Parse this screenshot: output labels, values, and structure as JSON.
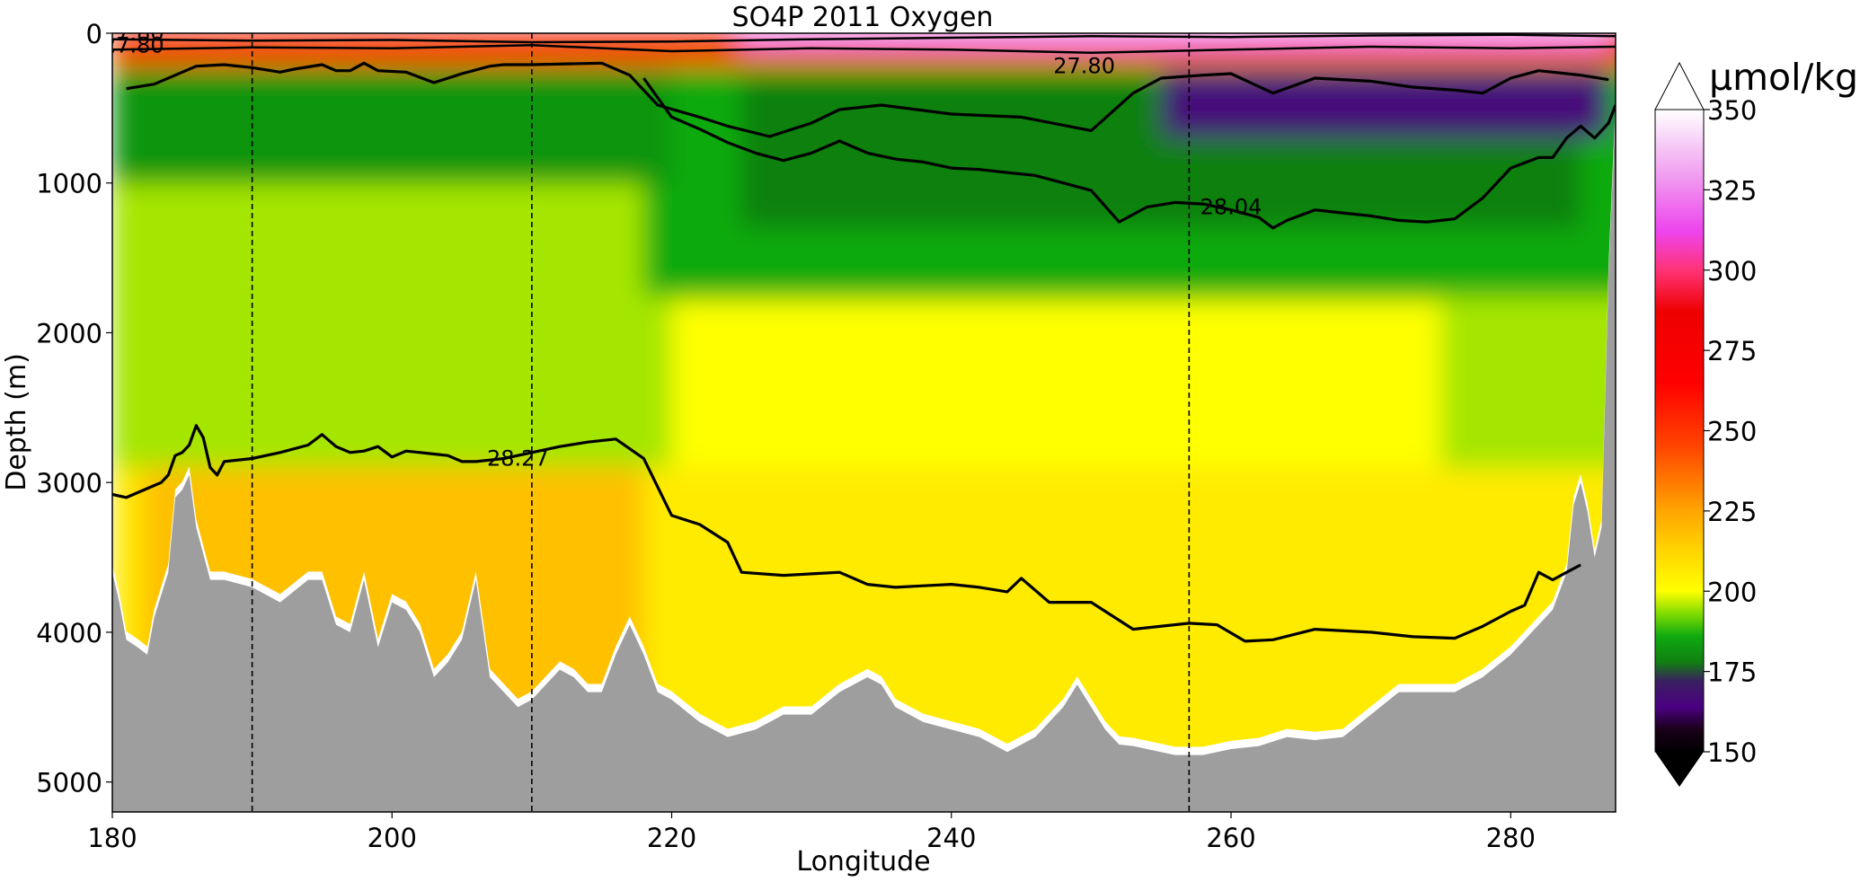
{
  "chart_data": {
    "type": "heatmap",
    "title": "SO4P 2011 Oxygen",
    "xlabel": "Longitude",
    "ylabel": "Depth (m)",
    "xlim": [
      180,
      287.5
    ],
    "ylim": [
      5200,
      0
    ],
    "x_ticks": [
      180,
      200,
      220,
      240,
      260,
      280
    ],
    "y_ticks": [
      0,
      1000,
      2000,
      3000,
      4000,
      5000
    ],
    "colorbar": {
      "unit": "µmol/kg",
      "range": [
        150,
        350
      ],
      "ticks": [
        150,
        175,
        200,
        225,
        250,
        275,
        300,
        325,
        350
      ],
      "extend": "both",
      "stops": [
        {
          "value": 150,
          "color": "#000000"
        },
        {
          "value": 157,
          "color": "#1a001a"
        },
        {
          "value": 164,
          "color": "#4b0082"
        },
        {
          "value": 172,
          "color": "#3a2060"
        },
        {
          "value": 178,
          "color": "#108010"
        },
        {
          "value": 186,
          "color": "#10aa10"
        },
        {
          "value": 193,
          "color": "#7fdc00"
        },
        {
          "value": 200,
          "color": "#ffff00"
        },
        {
          "value": 212,
          "color": "#ffd700"
        },
        {
          "value": 225,
          "color": "#ffa500"
        },
        {
          "value": 245,
          "color": "#ff4500"
        },
        {
          "value": 265,
          "color": "#ff0000"
        },
        {
          "value": 287,
          "color": "#ee0000"
        },
        {
          "value": 300,
          "color": "#ff3377"
        },
        {
          "value": 312,
          "color": "#ee44ee"
        },
        {
          "value": 330,
          "color": "#f0a0f0"
        },
        {
          "value": 350,
          "color": "#ffffff"
        }
      ]
    },
    "section_lines_lon": [
      190,
      210,
      257
    ],
    "bathymetry": {
      "lon": [
        180,
        180.5,
        181,
        181.8,
        182.5,
        183,
        184,
        184.5,
        185,
        185.5,
        186,
        187,
        188,
        190,
        192,
        194,
        195,
        196,
        197,
        198,
        199,
        200,
        201,
        202,
        203,
        204,
        205,
        206,
        207,
        208,
        209,
        210,
        211,
        212,
        213,
        214,
        215,
        216,
        217,
        218,
        219,
        220,
        222,
        224,
        226,
        228,
        230,
        232,
        234,
        235,
        236,
        238,
        240,
        242,
        244,
        245,
        246,
        248,
        249,
        250,
        251,
        252,
        253,
        254,
        256,
        258,
        260,
        262,
        264,
        266,
        268,
        270,
        272,
        274,
        276,
        278,
        280,
        281,
        282,
        282.5,
        283,
        284,
        284.5,
        285,
        285.5,
        286,
        286.5,
        287,
        287.5
      ],
      "depth": [
        3600,
        3800,
        4050,
        4100,
        4150,
        3900,
        3600,
        3100,
        3050,
        2950,
        3300,
        3650,
        3650,
        3700,
        3800,
        3650,
        3650,
        3950,
        4000,
        3650,
        4100,
        3800,
        3850,
        4000,
        4300,
        4200,
        4050,
        3650,
        4300,
        4400,
        4500,
        4450,
        4350,
        4250,
        4300,
        4400,
        4400,
        4150,
        3950,
        4150,
        4400,
        4450,
        4600,
        4700,
        4650,
        4550,
        4550,
        4400,
        4300,
        4350,
        4500,
        4600,
        4650,
        4700,
        4800,
        4750,
        4700,
        4500,
        4350,
        4500,
        4650,
        4750,
        4760,
        4780,
        4820,
        4820,
        4780,
        4760,
        4700,
        4720,
        4700,
        4550,
        4400,
        4400,
        4400,
        4300,
        4150,
        4050,
        3950,
        3900,
        3850,
        3600,
        3150,
        3000,
        3200,
        3500,
        3300,
        1600,
        500
      ]
    },
    "isopycnals": [
      {
        "label": "27.80",
        "lon": [
          181,
          183,
          186,
          188,
          190,
          192,
          193,
          195,
          196,
          197,
          198,
          199,
          201,
          203,
          205,
          207,
          208,
          210,
          215,
          217,
          219,
          222,
          224,
          227,
          230,
          232,
          235,
          240,
          245,
          250,
          253,
          255,
          258,
          260,
          263,
          266,
          270,
          273,
          276,
          278,
          280,
          282,
          284,
          285,
          287
        ],
        "depth": [
          370,
          340,
          220,
          210,
          230,
          260,
          240,
          210,
          250,
          250,
          200,
          250,
          260,
          330,
          270,
          220,
          210,
          210,
          200,
          280,
          480,
          560,
          620,
          690,
          600,
          510,
          480,
          540,
          560,
          650,
          400,
          300,
          280,
          270,
          400,
          300,
          320,
          360,
          380,
          400,
          300,
          250,
          270,
          280,
          310
        ]
      },
      {
        "label": "28.04",
        "lon": [
          218,
          220,
          222,
          224,
          226,
          228,
          230,
          232,
          234,
          236,
          238,
          240,
          242,
          244,
          246,
          248,
          250,
          252,
          254,
          256,
          258,
          260,
          262,
          263,
          264,
          266,
          268,
          270,
          272,
          274,
          276,
          278,
          280,
          282,
          283,
          284,
          285,
          286,
          287,
          287.5
        ],
        "depth": [
          300,
          560,
          640,
          730,
          800,
          850,
          800,
          720,
          800,
          840,
          860,
          900,
          910,
          930,
          950,
          1000,
          1050,
          1260,
          1160,
          1130,
          1140,
          1180,
          1230,
          1300,
          1250,
          1180,
          1200,
          1220,
          1250,
          1260,
          1240,
          1100,
          900,
          830,
          830,
          700,
          620,
          700,
          600,
          480
        ]
      },
      {
        "label": "28.27",
        "lon": [
          180,
          181,
          182.5,
          183.5,
          184,
          184.5,
          185,
          185.5,
          186,
          186.5,
          187,
          187.5,
          188,
          190,
          192,
          194,
          195,
          196,
          197,
          198,
          199,
          200,
          201,
          202,
          203,
          204,
          205,
          206,
          207,
          208,
          210,
          212,
          214,
          216,
          218,
          220,
          222,
          224,
          225,
          228,
          230,
          232,
          234,
          236,
          238,
          240,
          242,
          244,
          245,
          247,
          250,
          253,
          257,
          259,
          261,
          263,
          266,
          270,
          273,
          276,
          278,
          280,
          281,
          282,
          283,
          284,
          285
        ],
        "depth": [
          3080,
          3100,
          3040,
          3000,
          2950,
          2820,
          2800,
          2750,
          2620,
          2700,
          2900,
          2950,
          2860,
          2840,
          2800,
          2750,
          2680,
          2760,
          2800,
          2790,
          2760,
          2830,
          2790,
          2800,
          2810,
          2820,
          2860,
          2860,
          2850,
          2840,
          2800,
          2760,
          2730,
          2710,
          2840,
          3220,
          3280,
          3400,
          3600,
          3620,
          3610,
          3600,
          3680,
          3700,
          3690,
          3680,
          3700,
          3730,
          3640,
          3800,
          3800,
          3980,
          3940,
          3950,
          4060,
          4050,
          3980,
          4000,
          4030,
          4040,
          3960,
          3860,
          3820,
          3600,
          3650,
          3600,
          3550
        ]
      }
    ],
    "isopycnal_label_positions": [
      {
        "label": "27.80",
        "lon": 181.5,
        "depth": 80
      },
      {
        "label": "27.80",
        "lon": 181.5,
        "depth": 0
      },
      {
        "label": "27.80",
        "lon": 249.5,
        "depth": 220
      },
      {
        "label": "28.04",
        "lon": 260.0,
        "depth": 1160
      },
      {
        "label": "28.27",
        "lon": 209.0,
        "depth": 2840
      }
    ],
    "oxygen_fields": [
      {
        "lon": [
          180,
          290
        ],
        "depth": [
          0,
          5200
        ],
        "oxygen": 206
      },
      {
        "lon": [
          180,
          290
        ],
        "depth": [
          0,
          2900
        ],
        "oxygen": 195
      },
      {
        "lon": [
          220,
          275
        ],
        "depth": [
          1800,
          2900
        ],
        "oxygen": 200
      },
      {
        "lon": [
          182,
          218
        ],
        "depth": [
          2900,
          4700
        ],
        "oxygen": 218
      },
      {
        "lon": [
          218,
          290
        ],
        "depth": [
          0,
          1750
        ],
        "oxygen": 186
      },
      {
        "lon": [
          225,
          285
        ],
        "depth": [
          300,
          1300
        ],
        "oxygen": 178
      },
      {
        "lon": [
          255,
          287
        ],
        "depth": [
          250,
          700
        ],
        "oxygen": 166
      },
      {
        "lon": [
          180,
          220
        ],
        "depth": [
          200,
          1000
        ],
        "oxygen": 182
      },
      {
        "lon": [
          180,
          290
        ],
        "depth": [
          0,
          220
        ],
        "oxygen": 240
      },
      {
        "lon": [
          180,
          290
        ],
        "depth": [
          0,
          130
        ],
        "oxygen": 280
      },
      {
        "lon": [
          225,
          287
        ],
        "depth": [
          0,
          100
        ],
        "oxygen": 320
      }
    ]
  }
}
